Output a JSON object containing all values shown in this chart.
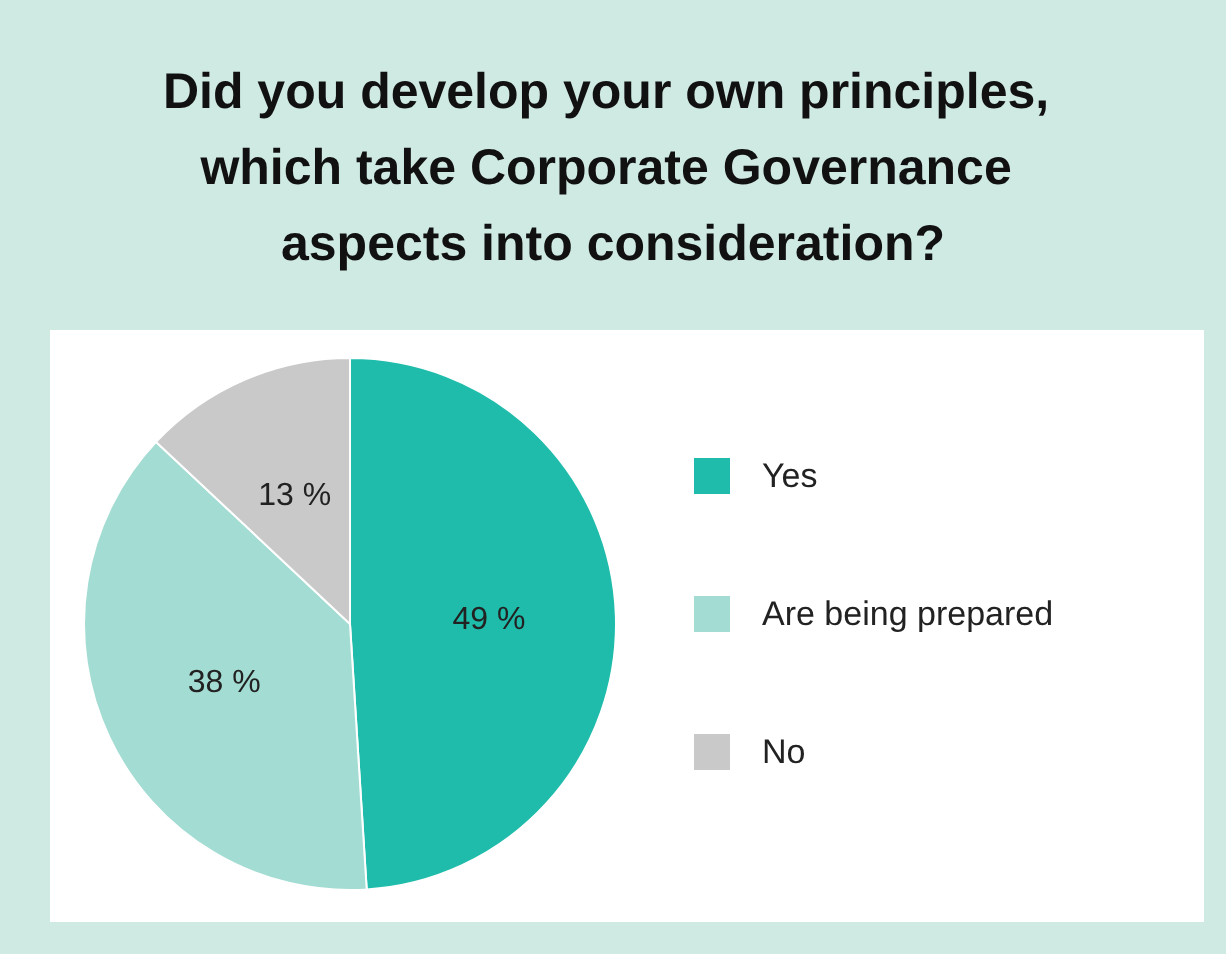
{
  "chart_data": {
    "type": "pie",
    "title": "Did you develop your own principles, which take Corporate Governance aspects into consideration?",
    "categories": [
      "Yes",
      "Are being prepared",
      "No"
    ],
    "values": [
      49,
      38,
      13
    ],
    "colors": [
      "#1fbcab",
      "#a3dcd2",
      "#c9c9c9"
    ],
    "value_labels": [
      "49 %",
      "38 %",
      "13 %"
    ],
    "legend": "right"
  }
}
